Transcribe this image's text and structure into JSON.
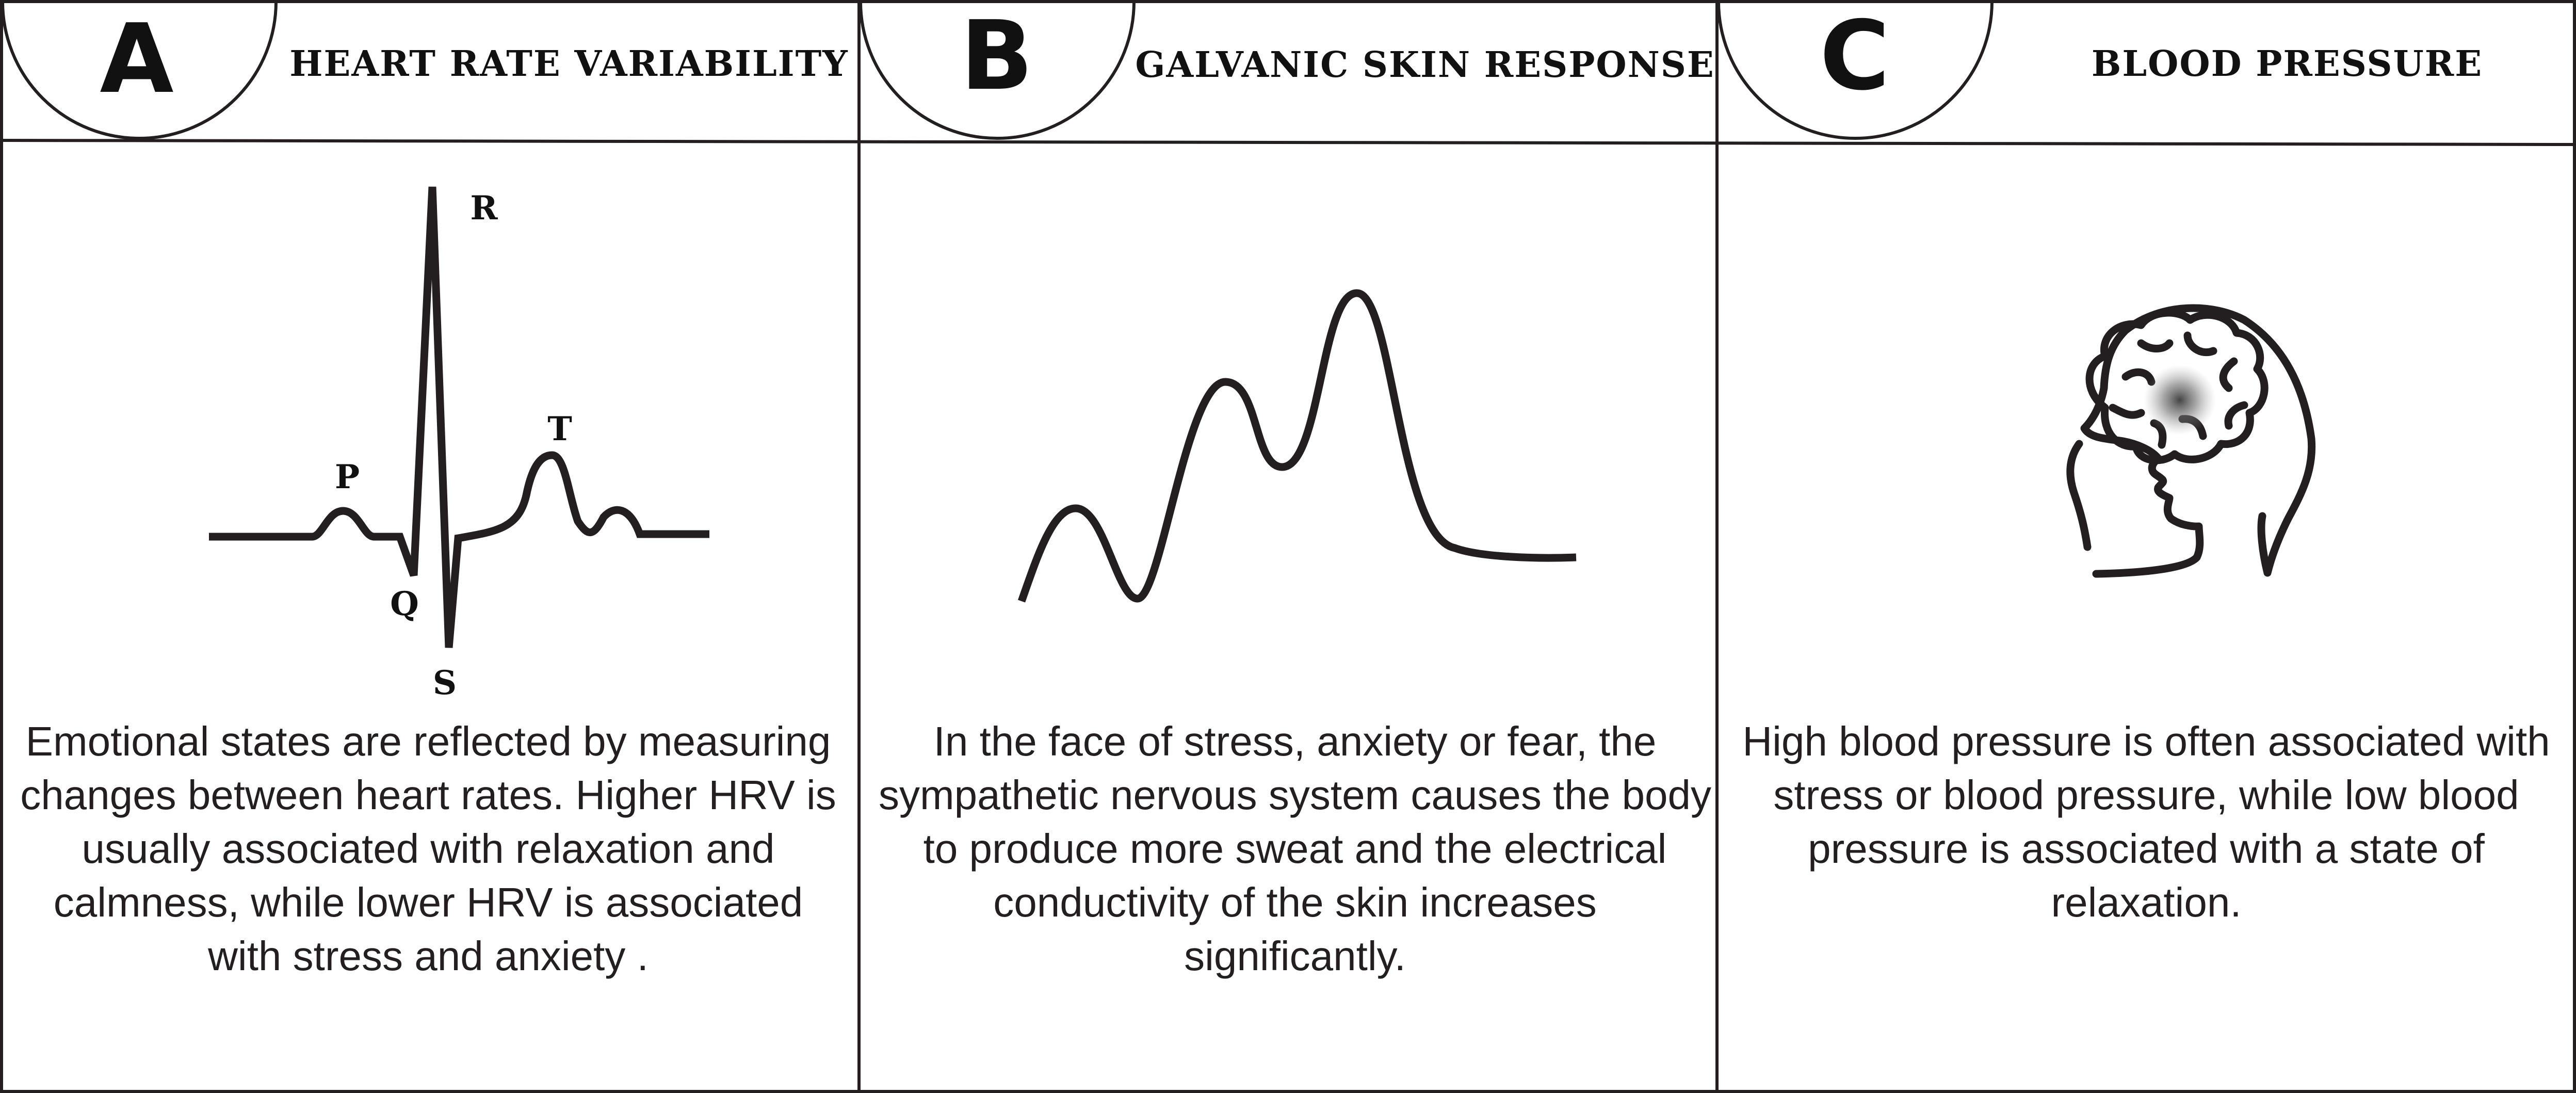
{
  "panels": [
    {
      "letter": "A",
      "title": "HEART RATE VARIABILITY",
      "description": "Emotional states are reflected by measuring changes between heart rates. Higher HRV is usually associated with relaxation and calmness, while lower HRV is associated with stress and anxiety .",
      "wave_labels": {
        "p": "P",
        "q": "Q",
        "r": "R",
        "s": "S",
        "t": "T"
      },
      "icon": "ecg-waveform"
    },
    {
      "letter": "B",
      "title": "GALVANIC SKIN RESPONSE",
      "description": "In the face of stress, anxiety or fear, the sympathetic nervous system causes the body to produce more sweat and the electrical conductivity of the skin increases significantly.",
      "icon": "skin-conductance-curve"
    },
    {
      "letter": "C",
      "title": "BLOOD PRESSURE",
      "description": "High blood pressure is often associated with stress or blood pressure, while low blood pressure is associated with a state of relaxation.",
      "icon": "head-brain-icon"
    }
  ],
  "colors": {
    "line": "#231f20",
    "background": "#ffffff",
    "brain_highlight": "#555555"
  }
}
